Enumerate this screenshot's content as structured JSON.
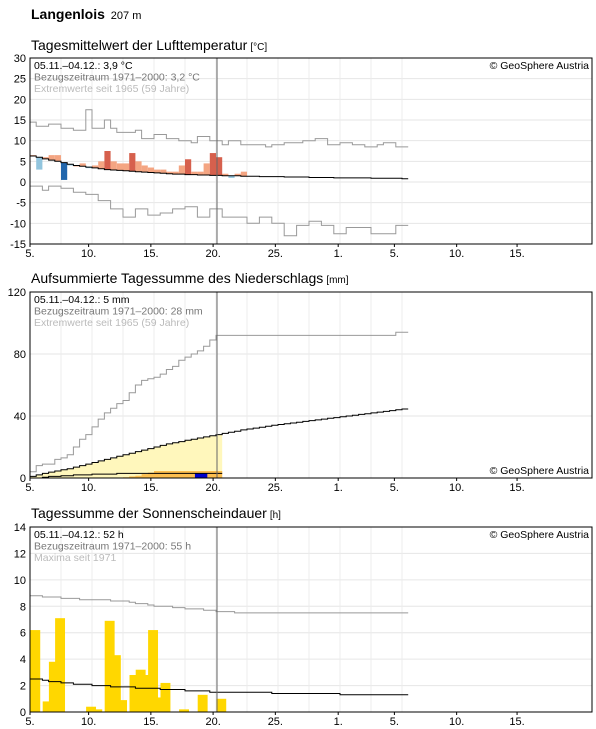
{
  "header": {
    "station_name": "Langenlois",
    "elevation": "207 m"
  },
  "x_tick_labels": [
    "5.",
    "10.",
    "15.",
    "20.",
    "25.",
    "1.",
    "5.",
    "10.",
    "15."
  ],
  "colors": {
    "warm_light": "#f4a582",
    "warm_dark": "#d6604d",
    "cold_light": "#92c5de",
    "cold_dark": "#2166ac",
    "precip_light": "#fff7bc",
    "precip_mid": "#fdbf50",
    "precip_dark": "#0000cc",
    "sun": "#ffd700",
    "reference": "#000000",
    "extremes": "#999999",
    "today": "#666666"
  },
  "chart_data": [
    {
      "type": "bar",
      "title": "Tagesmittelwert der Lufttemperatur",
      "unit": "[°C]",
      "ylim": [
        -15,
        30
      ],
      "yticks": [
        30,
        25,
        20,
        15,
        10,
        5,
        0,
        -5,
        -10,
        -15
      ],
      "info_lines": [
        "05.11.–04.12.: 3,9 °C",
        "Bezugszeitraum 1971–2000: 3,2 °C",
        "Extremwerte seit 1965 (59 Jahre)"
      ],
      "copyright": "© GeoSphere Austria",
      "series": [
        {
          "name": "Tagesmittel",
          "values": [
            6.5,
            3.0,
            6.0,
            6.5,
            6.5,
            0.5,
            4.0,
            4.0,
            4.5,
            3.5,
            4.0,
            5.0,
            7.5,
            5.0,
            4.5,
            4.5,
            7.0,
            5.0,
            4.0,
            3.5,
            3.0,
            3.0,
            2.5,
            2.5,
            4.0,
            5.5,
            2.5,
            2.5,
            4.5,
            7.0,
            6.0,
            2.0,
            1.0,
            2.0,
            2.5
          ]
        },
        {
          "name": "Bezugszeitraum 1971–2000",
          "values": [
            6.3,
            6.0,
            5.6,
            5.3,
            5.0,
            4.7,
            4.3,
            4.0,
            3.8,
            3.6,
            3.4,
            3.2,
            3.0,
            2.9,
            2.8,
            2.7,
            2.6,
            2.5,
            2.4,
            2.3,
            2.2,
            2.1,
            2.0,
            1.9,
            1.9,
            1.8,
            1.8,
            1.7,
            1.7,
            1.6,
            1.6,
            1.5,
            1.5,
            1.5,
            1.4,
            1.4,
            1.4,
            1.3,
            1.3,
            1.3,
            1.3,
            1.2,
            1.2,
            1.2,
            1.2,
            1.1,
            1.1,
            1.1,
            1.1,
            1.0,
            1.0,
            1.0,
            1.0,
            1.0,
            1.0,
            0.9,
            0.9,
            0.9,
            0.9,
            0.9,
            0.8
          ]
        },
        {
          "name": "Maximum",
          "values": [
            14.5,
            13.5,
            13.5,
            14.0,
            14.0,
            13.0,
            13.0,
            12.5,
            12.5,
            17.5,
            13.0,
            13.0,
            15.0,
            13.0,
            12.0,
            12.0,
            12.0,
            12.5,
            10.5,
            10.5,
            11.5,
            11.5,
            10.5,
            10.5,
            10.0,
            10.0,
            9.5,
            11.0,
            11.0,
            10.0,
            10.0,
            9.0,
            10.0,
            10.0,
            9.0,
            9.0,
            9.0,
            9.0,
            8.5,
            9.0,
            9.0,
            9.5,
            9.5,
            9.5,
            10.0,
            10.0,
            10.5,
            10.5,
            9.0,
            9.0,
            9.5,
            9.5,
            9.0,
            9.0,
            8.5,
            8.5,
            9.0,
            9.5,
            9.5,
            8.5,
            8.5
          ]
        },
        {
          "name": "Minimum",
          "values": [
            -1.0,
            -1.0,
            -2.0,
            -1.0,
            -1.0,
            -1.5,
            -1.5,
            -2.5,
            -2.5,
            -3.0,
            -3.0,
            -4.5,
            -4.5,
            -6.5,
            -6.5,
            -8.5,
            -8.5,
            -6.5,
            -6.5,
            -8.0,
            -8.0,
            -7.5,
            -7.5,
            -6.5,
            -6.5,
            -6.0,
            -6.0,
            -8.5,
            -8.5,
            -6.5,
            -6.5,
            -8.5,
            -8.5,
            -8.5,
            -8.5,
            -10.0,
            -10.0,
            -8.5,
            -8.5,
            -10.0,
            -10.0,
            -13.0,
            -13.0,
            -10.5,
            -10.5,
            -9.5,
            -9.5,
            -10.5,
            -10.5,
            -12.5,
            -12.5,
            -11.0,
            -11.0,
            -11.0,
            -11.0,
            -12.5,
            -12.5,
            -12.5,
            -12.5,
            -10.5,
            -10.5
          ]
        }
      ]
    },
    {
      "type": "area",
      "title": "Aufsummierte Tagessumme des Niederschlags",
      "unit": "[mm]",
      "ylim": [
        0,
        120
      ],
      "yticks": [
        120,
        80,
        40,
        0
      ],
      "info_lines": [
        "05.11.–04.12.: 5 mm",
        "Bezugszeitraum 1971–2000: 28 mm",
        "Extremwerte seit 1965 (59 Jahre)"
      ],
      "copyright": "© GeoSphere Austria",
      "series": [
        {
          "name": "Tagessumme kumuliert",
          "values": [
            0.0,
            0.0,
            0.0,
            0.0,
            0.0,
            0.0,
            0.0,
            0.0,
            0.0,
            0.0,
            0.0,
            0.0,
            0.0,
            0.0,
            0.3,
            0.5,
            1.0,
            1.5,
            2.5,
            3.5,
            4.5,
            4.5,
            4.5,
            4.5,
            4.5,
            4.5,
            4.5,
            4.5,
            4.5,
            4.5,
            4.5
          ]
        },
        {
          "name": "Bezugszeitraum 1971–2000",
          "values": [
            1.0,
            2.0,
            3.0,
            3.8,
            4.5,
            5.3,
            6.0,
            7.0,
            8.0,
            9.0,
            10.0,
            11.0,
            12.0,
            13.0,
            14.0,
            15.0,
            16.0,
            17.0,
            18.0,
            19.0,
            20.0,
            21.0,
            22.0,
            22.8,
            23.5,
            24.3,
            25.0,
            25.8,
            26.5,
            27.2,
            28.0,
            28.8,
            29.5,
            30.2,
            31.0,
            31.6,
            32.2,
            32.8,
            33.4,
            34.0,
            34.5,
            35.0,
            35.5,
            36.0,
            36.5,
            37.0,
            37.5,
            38.0,
            38.5,
            39.0,
            39.5,
            40.0,
            40.5,
            41.0,
            41.5,
            42.0,
            42.5,
            43.0,
            43.5,
            44.0,
            44.5
          ]
        },
        {
          "name": "Maximum",
          "values": [
            4.0,
            8.0,
            9.0,
            9.0,
            12.0,
            13.0,
            15.0,
            20.0,
            25.0,
            28.0,
            33.0,
            38.0,
            42.0,
            45.0,
            48.0,
            50.0,
            55.0,
            60.0,
            63.0,
            64.0,
            65.0,
            67.0,
            70.0,
            72.0,
            76.0,
            78.0,
            80.0,
            82.0,
            85.0,
            89.0,
            92.0,
            92.0,
            92.0,
            92.0,
            92.0,
            92.0,
            92.0,
            92.0,
            92.0,
            92.0,
            92.0,
            92.0,
            92.0,
            92.0,
            92.0,
            92.0,
            92.0,
            92.0,
            92.0,
            92.0,
            92.0,
            92.0,
            92.0,
            92.0,
            92.0,
            92.0,
            92.0,
            92.0,
            92.0,
            94.0,
            94.0
          ]
        },
        {
          "name": "Minimum",
          "values": [
            0.0,
            0.0,
            0.5,
            1.0,
            1.0,
            1.5,
            1.5,
            2.0,
            2.0,
            2.0,
            2.5,
            2.5,
            2.5,
            2.5,
            3.0,
            3.0,
            3.0,
            3.0,
            3.0,
            3.0,
            3.0,
            3.0,
            3.0,
            3.0,
            3.0,
            3.0,
            3.0,
            3.0,
            3.0,
            3.0,
            3.0
          ]
        }
      ]
    },
    {
      "type": "bar",
      "title": "Tagessumme der Sonnenscheindauer",
      "unit": "[h]",
      "ylim": [
        0,
        14
      ],
      "yticks": [
        14,
        12,
        10,
        8,
        6,
        4,
        2,
        0
      ],
      "info_lines": [
        "05.11.–04.12.: 52 h",
        "Bezugszeitraum 1971–2000: 55 h",
        "Maxima seit 1971"
      ],
      "copyright": "© GeoSphere Austria",
      "series": [
        {
          "name": "Sonnenscheindauer",
          "values": [
            6.2,
            0.0,
            0.8,
            3.8,
            7.1,
            0.0,
            0.0,
            0.0,
            0.0,
            0.4,
            0.2,
            0.0,
            6.9,
            4.3,
            0.9,
            0.0,
            2.8,
            3.2,
            2.8,
            6.2,
            1.1,
            2.2,
            0.0,
            0.0,
            0.2,
            0.0,
            0.0,
            1.3,
            0.0,
            0.0,
            1.0
          ]
        },
        {
          "name": "Bezugszeitraum 1971–2000",
          "values": [
            2.5,
            2.5,
            2.4,
            2.3,
            2.3,
            2.2,
            2.2,
            2.1,
            2.1,
            2.1,
            2.0,
            2.0,
            2.0,
            1.9,
            1.9,
            1.9,
            1.9,
            1.8,
            1.8,
            1.8,
            1.8,
            1.7,
            1.7,
            1.7,
            1.7,
            1.6,
            1.6,
            1.6,
            1.6,
            1.5,
            1.5,
            1.5,
            1.5,
            1.5,
            1.5,
            1.5,
            1.5,
            1.5,
            1.5,
            1.4,
            1.4,
            1.4,
            1.4,
            1.4,
            1.4,
            1.4,
            1.4,
            1.4,
            1.4,
            1.4,
            1.3,
            1.3,
            1.3,
            1.3,
            1.3,
            1.3,
            1.3,
            1.3,
            1.3,
            1.3,
            1.3
          ]
        },
        {
          "name": "Maxima",
          "values": [
            8.8,
            8.8,
            8.7,
            8.7,
            8.7,
            8.6,
            8.6,
            8.6,
            8.5,
            8.5,
            8.5,
            8.5,
            8.5,
            8.4,
            8.4,
            8.4,
            8.3,
            8.2,
            8.2,
            8.1,
            8.0,
            8.0,
            8.0,
            7.9,
            7.9,
            7.8,
            7.8,
            7.8,
            7.7,
            7.7,
            7.6,
            7.6,
            7.6,
            7.5,
            7.5,
            7.5,
            7.5,
            7.5,
            7.5,
            7.5,
            7.5,
            7.5,
            7.5,
            7.5,
            7.5,
            7.5,
            7.5,
            7.5,
            7.5,
            7.5,
            7.5,
            7.5,
            7.5,
            7.5,
            7.5,
            7.5,
            7.5,
            7.5,
            7.5,
            7.5,
            7.5
          ]
        }
      ]
    }
  ]
}
